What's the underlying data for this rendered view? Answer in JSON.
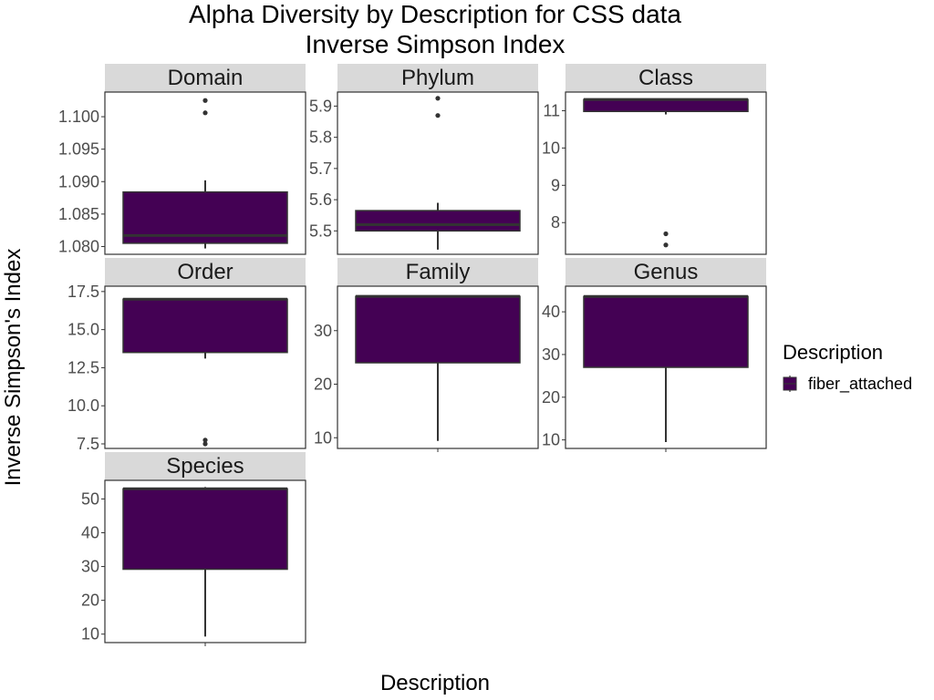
{
  "chart_data": {
    "type": "boxplot",
    "title": "Alpha Diversity by Description for CSS data",
    "subtitle": "Inverse Simpson Index",
    "xlabel": "Description",
    "ylabel": "Inverse Simpson's Index",
    "category": "fiber_attached",
    "fill_color": "#440154",
    "grid": false,
    "legend": {
      "title": "Description",
      "placement": "right",
      "entries": [
        "fiber_attached"
      ]
    },
    "panels": [
      {
        "name": "Domain",
        "ylim": [
          1.0788,
          1.1038
        ],
        "ticks": [
          1.08,
          1.085,
          1.09,
          1.095,
          1.1
        ],
        "tick_labels": [
          "1.080",
          "1.085",
          "1.090",
          "1.095",
          "1.100"
        ],
        "box": {
          "min": 1.0797,
          "q1": 1.0805,
          "median": 1.0817,
          "q3": 1.0884,
          "max": 1.0902
        },
        "outliers": [
          1.1006,
          1.1025
        ]
      },
      {
        "name": "Phylum",
        "ylim": [
          5.425,
          5.945
        ],
        "ticks": [
          5.5,
          5.6,
          5.7,
          5.8,
          5.9
        ],
        "tick_labels": [
          "5.5",
          "5.6",
          "5.7",
          "5.8",
          "5.9"
        ],
        "box": {
          "min": 5.44,
          "q1": 5.5,
          "median": 5.52,
          "q3": 5.565,
          "max": 5.59
        },
        "outliers": [
          5.87,
          5.925
        ]
      },
      {
        "name": "Class",
        "ylim": [
          7.15,
          11.5
        ],
        "ticks": [
          8,
          9,
          10,
          11
        ],
        "tick_labels": [
          "8",
          "9",
          "10",
          "11"
        ],
        "box": {
          "min": 10.9,
          "q1": 10.98,
          "median": 11.3,
          "q3": 11.3,
          "max": 11.3
        },
        "outliers": [
          7.4,
          7.7
        ]
      },
      {
        "name": "Order",
        "ylim": [
          7.2,
          17.85
        ],
        "ticks": [
          7.5,
          10.0,
          12.5,
          15.0,
          17.5
        ],
        "tick_labels": [
          "7.5",
          "10.0",
          "12.5",
          "15.0",
          "17.5"
        ],
        "box": {
          "min": 13.1,
          "q1": 13.5,
          "median": 17.0,
          "q3": 17.0,
          "max": 17.0
        },
        "outliers": [
          7.5,
          7.75
        ]
      },
      {
        "name": "Family",
        "ylim": [
          8.0,
          38.3
        ],
        "ticks": [
          10,
          20,
          30
        ],
        "tick_labels": [
          "10",
          "20",
          "30"
        ],
        "box": {
          "min": 9.4,
          "q1": 24.0,
          "median": 36.4,
          "q3": 36.4,
          "max": 36.4
        },
        "outliers": []
      },
      {
        "name": "Genus",
        "ylim": [
          8.0,
          46.0
        ],
        "ticks": [
          10,
          20,
          30,
          40
        ],
        "tick_labels": [
          "10",
          "20",
          "30",
          "40"
        ],
        "box": {
          "min": 9.5,
          "q1": 27.0,
          "median": 43.6,
          "q3": 43.6,
          "max": 43.6
        },
        "outliers": []
      },
      {
        "name": "Species",
        "ylim": [
          7.5,
          55.5
        ],
        "ticks": [
          10,
          20,
          30,
          40,
          50
        ],
        "tick_labels": [
          "10",
          "20",
          "30",
          "40",
          "50"
        ],
        "box": {
          "min": 9.3,
          "q1": 29.2,
          "median": 53.0,
          "q3": 53.0,
          "max": 53.5
        },
        "outliers": []
      }
    ]
  }
}
